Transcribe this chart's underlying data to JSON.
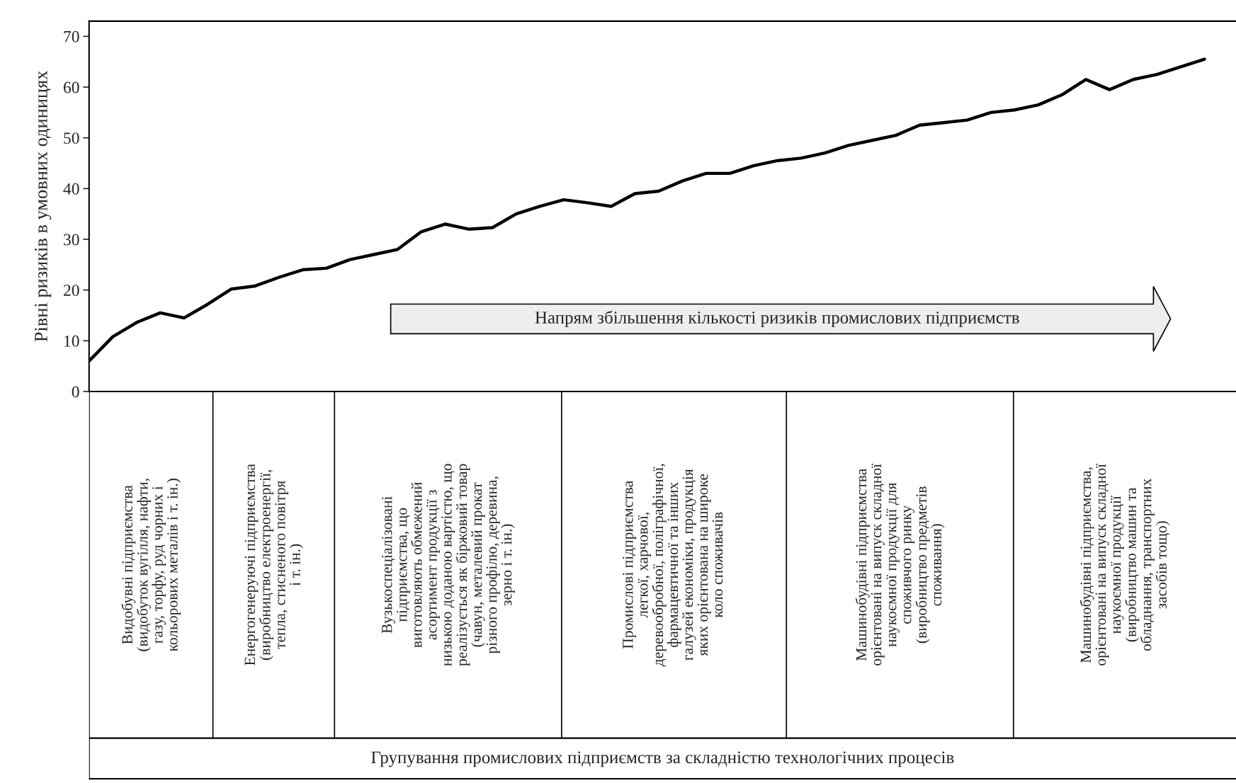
{
  "chart_data": {
    "type": "line",
    "ylabel": "Рівні ризиків в умовних одиницях",
    "categories": [
      null,
      null,
      null,
      null,
      null,
      null,
      null,
      null,
      null,
      null,
      null,
      null,
      null,
      null,
      null,
      null,
      null,
      null,
      null,
      null,
      null,
      null,
      null,
      null,
      null,
      null,
      null,
      null,
      null,
      null,
      null,
      null,
      null,
      null,
      null,
      null,
      null,
      null,
      null,
      null,
      null,
      null,
      null,
      null,
      null,
      null,
      null,
      null
    ],
    "values": [
      6,
      10.8,
      13.6,
      15.5,
      14.5,
      17.2,
      20.2,
      20.8,
      22.5,
      24,
      24.3,
      26,
      27,
      28,
      31.5,
      33,
      32,
      32.3,
      35,
      36.5,
      37.8,
      37.2,
      36.5,
      39,
      39.5,
      41.5,
      43,
      43,
      44.5,
      45.5,
      46,
      47,
      48.5,
      49.5,
      50.5,
      52.5,
      53,
      53.5,
      55,
      55.5,
      56.5,
      58.5,
      61.5,
      59.5,
      61.5,
      62.5,
      64,
      65.5
    ],
    "color": "#000000",
    "line_style": "solid",
    "ylim": [
      0,
      73
    ],
    "yticks": [
      0,
      10,
      20,
      30,
      40,
      50,
      60,
      70
    ],
    "annotations": [
      "Видобувні підприємства\n(видобуток вугілля, нафти,\nгазу, торфу, руд чорних і\nкольорових металів і т. ін.)",
      "Енергогенеруючі підприємства\n(виробництво електроенергії,\nтепла, стисненого повітря\nі т. ін.)",
      "Вузькоспеціалізовані\nпідприємства, що\nвиготовляють обмежений\nасортимент продукції з\nнизькою доданою вартістю, що\nреалізується як біржовий товар\n(чавун, металевий прокат\nрізного профілю, деревина,\nзерно і т. ін.)",
      "Промислові підприємства\nлегкої, харчової,\nдеревообробної, поліграфічної,\nфармацевтичної та інших\nгалузей економіки, продукція\nяких орієнтована на широке\nколо споживачів",
      "Машинобудівні підприємства\nорієнтовані на випуск складної\nнаукоємної продукції для\nспоживчого ринку\n(виробництво предметів\nспоживання)",
      "Машинобудівні підприємства,\nорієнтовані на випуск складної\nнаукоємної продукції\n(виробництво машин та\nобладнання, транспортних\nзасобів тощо)",
      "Групування промислових підприємств за складністю технологічних процесів",
      "Напрям збільшення кількості ризиків промислових підприємств"
    ]
  }
}
